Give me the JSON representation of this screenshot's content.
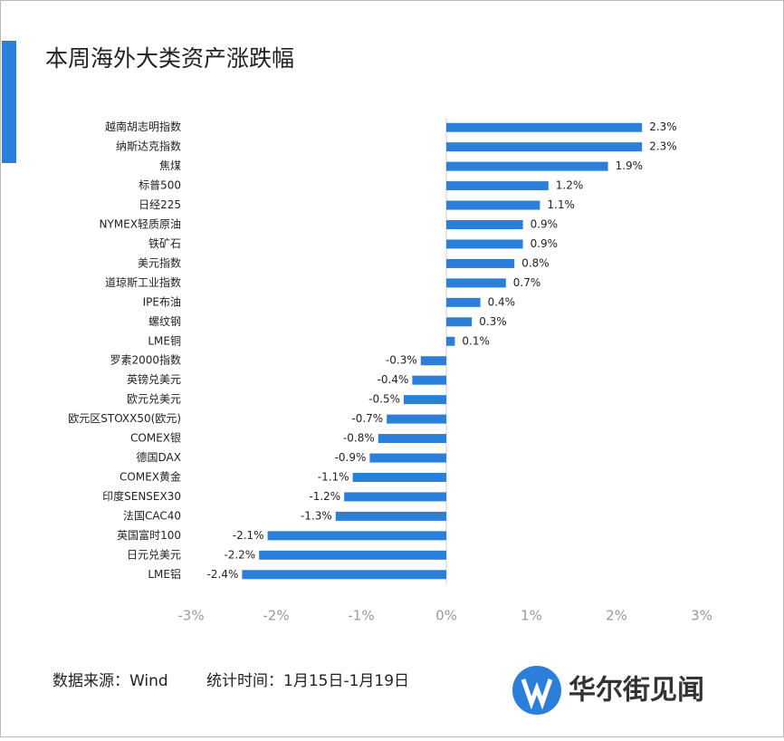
{
  "chart_data": {
    "type": "bar",
    "orientation": "horizontal",
    "title": "本周海外大类资产涨跌幅",
    "categories": [
      "越南胡志明指数",
      "纳斯达克指数",
      "焦煤",
      "标普500",
      "日经225",
      "NYMEX轻质原油",
      "铁矿石",
      "美元指数",
      "道琼斯工业指数",
      "IPE布油",
      "螺纹钢",
      "LME铜",
      "罗素2000指数",
      "英镑兑美元",
      "欧元兑美元",
      "欧元区STOXX50(欧元)",
      "COMEX银",
      "德国DAX",
      "COMEX黄金",
      "印度SENSEX30",
      "法国CAC40",
      "英国富时100",
      "日元兑美元",
      "LME铝"
    ],
    "values": [
      2.3,
      2.3,
      1.9,
      1.2,
      1.1,
      0.9,
      0.9,
      0.8,
      0.7,
      0.4,
      0.3,
      0.1,
      -0.3,
      -0.4,
      -0.5,
      -0.7,
      -0.8,
      -0.9,
      -1.1,
      -1.2,
      -1.3,
      -2.1,
      -2.2,
      -2.4
    ],
    "value_labels": [
      "2.3%",
      "2.3%",
      "1.9%",
      "1.2%",
      "1.1%",
      "0.9%",
      "0.9%",
      "0.8%",
      "0.7%",
      "0.4%",
      "0.3%",
      "0.1%",
      "-0.3%",
      "-0.4%",
      "-0.5%",
      "-0.7%",
      "-0.8%",
      "-0.9%",
      "-1.1%",
      "-1.2%",
      "-1.3%",
      "-2.1%",
      "-2.2%",
      "-2.4%"
    ],
    "color": "#2b7fd9",
    "xlim": [
      -3,
      3
    ],
    "xticks": [
      {
        "value": -3,
        "label": "-3%"
      },
      {
        "value": -2,
        "label": "-2%"
      },
      {
        "value": -1,
        "label": "-1%"
      },
      {
        "value": 0,
        "label": "0%"
      },
      {
        "value": 1,
        "label": "1%"
      },
      {
        "value": 2,
        "label": "2%"
      },
      {
        "value": 3,
        "label": "3%"
      }
    ],
    "grid": false
  },
  "footer": {
    "source": "数据来源：Wind",
    "period": "统计时间：1月15日-1月19日",
    "logo": "华尔街见闻"
  }
}
